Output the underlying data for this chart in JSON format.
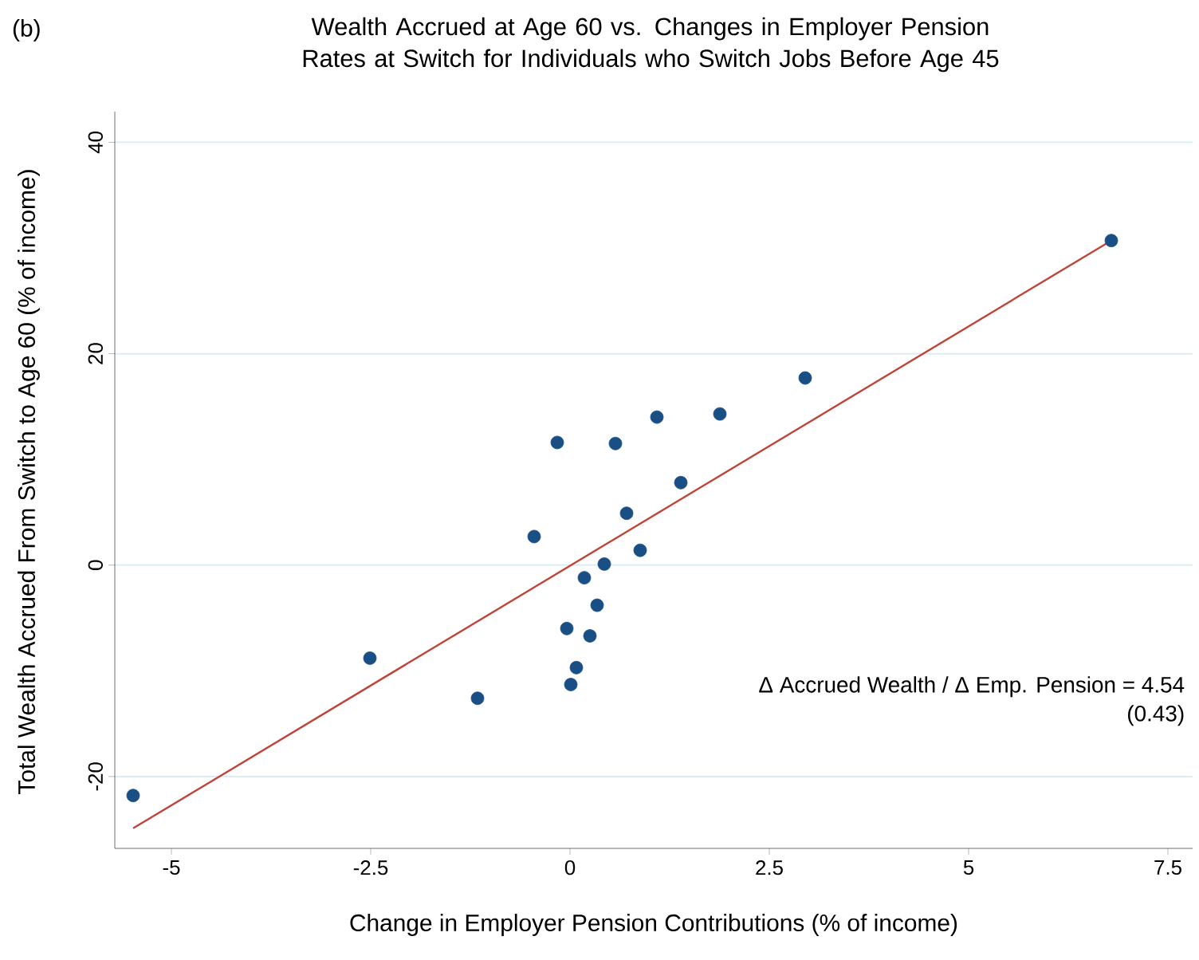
{
  "chart_data": {
    "type": "scatter",
    "title": "Wealth Accrued at Age 60 vs. Changes in Employer Pension Rates at Switch for Individuals who Switch Jobs Before Age 45",
    "xlabel": "Change in Employer Pension Contributions (% of income)",
    "ylabel": "Total Wealth Accrued From Switch to Age 60 (% of income)",
    "annotations": [
      "(b)",
      "Δ Accrued Wealth / Δ Emp. Pension = 4.54",
      "(0.43)"
    ],
    "xlim": [
      -5.71,
      7.81
    ],
    "ylim": [
      -26.8,
      42.9
    ],
    "xticks": [
      -5,
      -2.5,
      0,
      2.5,
      5,
      7.5
    ],
    "yticks": [
      -20,
      0,
      20,
      40
    ],
    "grid": "y",
    "series": [
      {
        "color": "#1a4f86",
        "marker": "circle",
        "x": [
          -5.48,
          -2.51,
          -1.16,
          -0.45,
          -0.16,
          -0.04,
          0.01,
          0.08,
          0.18,
          0.25,
          0.34,
          0.43,
          0.57,
          0.71,
          0.88,
          1.09,
          1.39,
          1.88,
          2.95,
          6.79
        ],
        "values": [
          -21.8,
          -8.8,
          -12.6,
          2.7,
          11.6,
          -6.0,
          -11.3,
          -9.7,
          -1.2,
          -6.7,
          -3.8,
          0.1,
          11.5,
          4.9,
          1.4,
          14.0,
          7.8,
          14.3,
          17.7,
          30.7
        ]
      },
      {
        "type": "line",
        "marker": "none",
        "color": "#c0433a",
        "x": [
          -5.48,
          6.79
        ],
        "values": [
          -24.9,
          30.7
        ]
      }
    ]
  }
}
